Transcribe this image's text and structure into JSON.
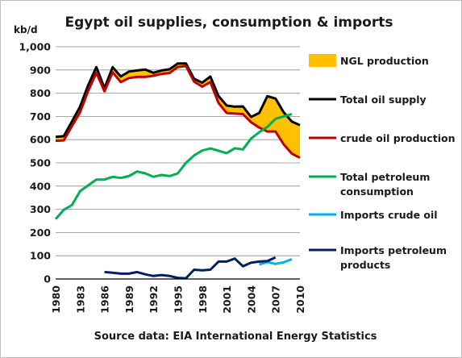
{
  "chart_data": {
    "type": "line",
    "title": "Egypt oil supplies, consumption & imports",
    "ylabel": "kb/d",
    "ylim": [
      0,
      1000
    ],
    "yticks": [
      "0",
      "100",
      "200",
      "300",
      "400",
      "500",
      "600",
      "700",
      "800",
      "900",
      "1,000"
    ],
    "xlim": [
      1980,
      2010
    ],
    "xticks": [
      "1980",
      "1983",
      "1986",
      "1989",
      "1992",
      "1995",
      "1998",
      "2001",
      "2004",
      "2007",
      "2010"
    ],
    "grid": "horizontal",
    "legend_position": "right",
    "source": "Source data: EIA International Energy Statistics",
    "series": [
      {
        "name": "NGL production",
        "kind": "area-between",
        "upper": "Total oil supply",
        "lower": "crude oil production",
        "color": "#ffc000"
      },
      {
        "name": "Total oil supply",
        "color": "#000000",
        "x": [
          1980,
          1981,
          1982,
          1983,
          1984,
          1985,
          1986,
          1987,
          1988,
          1989,
          1990,
          1991,
          1992,
          1993,
          1994,
          1995,
          1996,
          1997,
          1998,
          1999,
          2000,
          2001,
          2002,
          2003,
          2004,
          2005,
          2006,
          2007,
          2008,
          2009,
          2010
        ],
        "y": [
          612,
          615,
          678,
          742,
          835,
          912,
          822,
          912,
          872,
          893,
          898,
          902,
          888,
          898,
          903,
          928,
          928,
          862,
          845,
          872,
          788,
          747,
          742,
          743,
          698,
          715,
          787,
          777,
          718,
          678,
          662
        ]
      },
      {
        "name": "crude oil production",
        "color": "#c00000",
        "x": [
          1980,
          1981,
          1982,
          1983,
          1984,
          1985,
          1986,
          1987,
          1988,
          1989,
          1990,
          1991,
          1992,
          1993,
          1994,
          1995,
          1996,
          1997,
          1998,
          1999,
          2000,
          2001,
          2002,
          2003,
          2004,
          2005,
          2006,
          2007,
          2008,
          2009,
          2010
        ],
        "y": [
          595,
          597,
          658,
          718,
          810,
          888,
          808,
          890,
          848,
          865,
          870,
          870,
          875,
          883,
          887,
          913,
          917,
          850,
          828,
          848,
          758,
          715,
          712,
          710,
          675,
          652,
          635,
          635,
          580,
          540,
          522
        ]
      },
      {
        "name": "Total petroleum consumption",
        "color": "#00b050",
        "x": [
          1980,
          1981,
          1982,
          1983,
          1984,
          1985,
          1986,
          1987,
          1988,
          1989,
          1990,
          1991,
          1992,
          1993,
          1994,
          1995,
          1996,
          1997,
          1998,
          1999,
          2000,
          2001,
          2002,
          2003,
          2004,
          2005,
          2006,
          2007,
          2008,
          2009
        ],
        "y": [
          258,
          298,
          318,
          378,
          403,
          428,
          428,
          440,
          435,
          443,
          463,
          455,
          440,
          448,
          443,
          455,
          500,
          532,
          553,
          562,
          552,
          542,
          563,
          558,
          605,
          632,
          655,
          690,
          700,
          710
        ]
      },
      {
        "name": "Imports crude oil",
        "color": "#00b0f0",
        "x": [
          2005,
          2006,
          2007,
          2008,
          2009
        ],
        "y": [
          63,
          73,
          65,
          72,
          85
        ]
      },
      {
        "name": "Imports petroleum products",
        "color": "#002060",
        "x": [
          1986,
          1987,
          1988,
          1989,
          1990,
          1991,
          1992,
          1993,
          1994,
          1995,
          1996,
          1997,
          1998,
          1999,
          2000,
          2001,
          2002,
          2003,
          2004,
          2005,
          2006,
          2007
        ],
        "y": [
          30,
          27,
          23,
          23,
          30,
          20,
          13,
          17,
          13,
          5,
          3,
          40,
          37,
          40,
          75,
          75,
          88,
          55,
          70,
          75,
          77,
          93
        ]
      }
    ],
    "legend": [
      {
        "label": "NGL production",
        "symbol": "box",
        "color": "#ffc000"
      },
      {
        "label": "Total oil supply",
        "symbol": "line",
        "color": "#000000"
      },
      {
        "label": "crude oil production",
        "symbol": "line",
        "color": "#c00000"
      },
      {
        "label": "Total petroleum consumption",
        "symbol": "line",
        "color": "#00b050"
      },
      {
        "label": "Imports crude oil",
        "symbol": "line",
        "color": "#00b0f0"
      },
      {
        "label": "Imports petroleum products",
        "symbol": "line",
        "color": "#002060"
      }
    ]
  }
}
